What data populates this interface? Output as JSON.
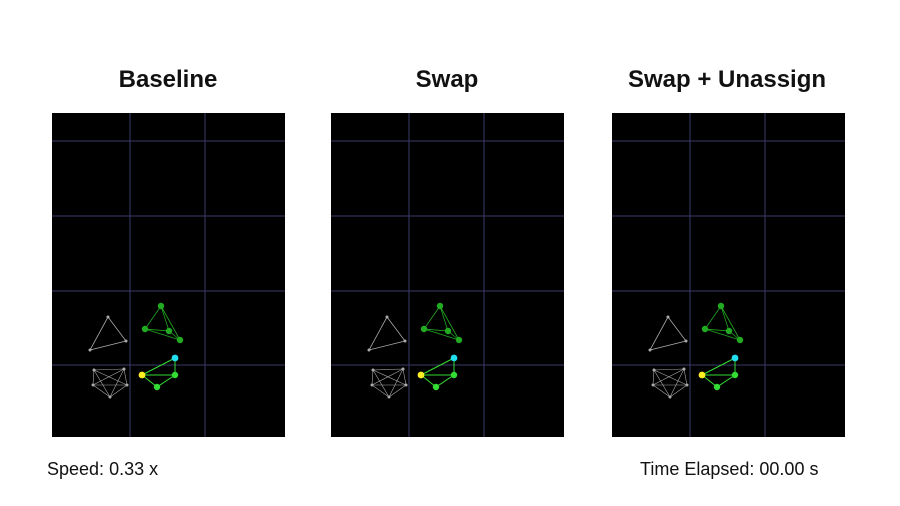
{
  "panels": [
    {
      "id": "baseline",
      "title": "Baseline"
    },
    {
      "id": "swap",
      "title": "Swap"
    },
    {
      "id": "swap-unassign",
      "title": "Swap + Unassign"
    }
  ],
  "footer": {
    "speed_label": "Speed:",
    "speed_value": "0.33 x",
    "time_label": "Time Elapsed:",
    "time_value": "00.00 s"
  },
  "colors": {
    "background": "#000000",
    "grid": "#3a3a6a",
    "idle_agent": "#aaaaaa",
    "green_team": "#22aa22",
    "yellow_agent": "#ffee22",
    "cyan_agent": "#22ddee",
    "bright_green": "#33dd33"
  }
}
